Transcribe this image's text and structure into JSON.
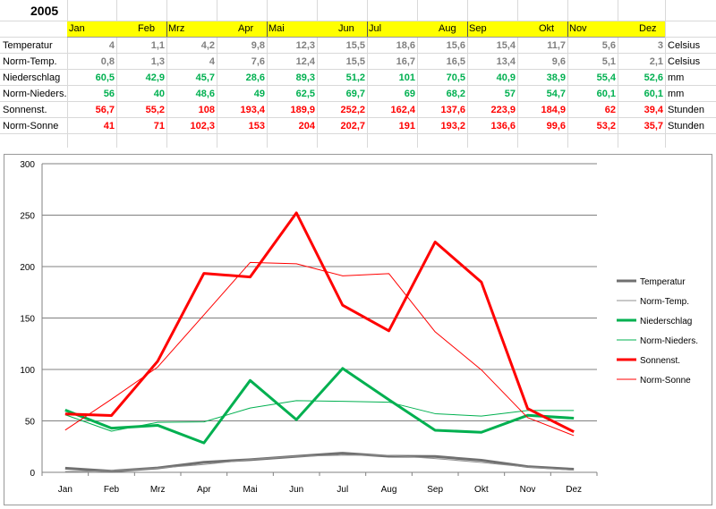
{
  "year": "2005",
  "months_header": [
    "Jan",
    "Feb",
    "Mrz",
    "Apr",
    "Mai",
    "Jun",
    "Jul",
    "Aug",
    "Sep",
    "Okt",
    "Nov",
    "Dez"
  ],
  "rows": [
    {
      "label": "Temperatur",
      "values": [
        "4",
        "1,1",
        "4,2",
        "9,8",
        "12,3",
        "15,5",
        "18,6",
        "15,6",
        "15,4",
        "11,7",
        "5,6",
        "3"
      ],
      "unit": "Celsius",
      "color": "#808080"
    },
    {
      "label": "Norm-Temp.",
      "values": [
        "0,8",
        "1,3",
        "4",
        "7,6",
        "12,4",
        "15,5",
        "16,7",
        "16,5",
        "13,4",
        "9,6",
        "5,1",
        "2,1"
      ],
      "unit": "Celsius",
      "color": "#808080"
    },
    {
      "label": "Niederschlag",
      "values": [
        "60,5",
        "42,9",
        "45,7",
        "28,6",
        "89,3",
        "51,2",
        "101",
        "70,5",
        "40,9",
        "38,9",
        "55,4",
        "52,6"
      ],
      "unit": "mm",
      "color": "#00b050"
    },
    {
      "label": "Norm-Nieders.",
      "values": [
        "56",
        "40",
        "48,6",
        "49",
        "62,5",
        "69,7",
        "69",
        "68,2",
        "57",
        "54,7",
        "60,1",
        "60,1"
      ],
      "unit": "mm",
      "color": "#00b050"
    },
    {
      "label": "Sonnenst.",
      "values": [
        "56,7",
        "55,2",
        "108",
        "193,4",
        "189,9",
        "252,2",
        "162,4",
        "137,6",
        "223,9",
        "184,9",
        "62",
        "39,4"
      ],
      "unit": "Stunden",
      "color": "#ff0000"
    },
    {
      "label": "Norm-Sonne",
      "values": [
        "41",
        "71",
        "102,3",
        "153",
        "204",
        "202,7",
        "191",
        "193,2",
        "136,6",
        "99,6",
        "53,2",
        "35,7"
      ],
      "unit": "Stunden",
      "color": "#ff0000"
    }
  ],
  "chart_data": {
    "type": "line",
    "categories": [
      "Jan",
      "Feb",
      "Mrz",
      "Apr",
      "Mai",
      "Jun",
      "Jul",
      "Aug",
      "Sep",
      "Okt",
      "Nov",
      "Dez"
    ],
    "ylim": [
      0,
      300
    ],
    "yticks": [
      0,
      50,
      100,
      150,
      200,
      250,
      300
    ],
    "grid": true,
    "legend_position": "right",
    "series": [
      {
        "name": "Temperatur",
        "values": [
          4,
          1.1,
          4.2,
          9.8,
          12.3,
          15.5,
          18.6,
          15.6,
          15.4,
          11.7,
          5.6,
          3
        ],
        "color": "#707070",
        "width": 3
      },
      {
        "name": "Norm-Temp.",
        "values": [
          0.8,
          1.3,
          4,
          7.6,
          12.4,
          15.5,
          16.7,
          16.5,
          13.4,
          9.6,
          5.1,
          2.1
        ],
        "color": "#909090",
        "width": 1
      },
      {
        "name": "Niederschlag",
        "values": [
          60.5,
          42.9,
          45.7,
          28.6,
          89.3,
          51.2,
          101,
          70.5,
          40.9,
          38.9,
          55.4,
          52.6
        ],
        "color": "#00b050",
        "width": 3
      },
      {
        "name": "Norm-Nieders.",
        "values": [
          56,
          40,
          48.6,
          49,
          62.5,
          69.7,
          69,
          68.2,
          57,
          54.7,
          60.1,
          60.1
        ],
        "color": "#00b050",
        "width": 1
      },
      {
        "name": "Sonnenst.",
        "values": [
          56.7,
          55.2,
          108,
          193.4,
          189.9,
          252.2,
          162.4,
          137.6,
          223.9,
          184.9,
          62,
          39.4
        ],
        "color": "#ff0000",
        "width": 3
      },
      {
        "name": "Norm-Sonne",
        "values": [
          41,
          71,
          102.3,
          153,
          204,
          202.7,
          191,
          193.2,
          136.6,
          99.6,
          53.2,
          35.7
        ],
        "color": "#ff0000",
        "width": 1
      }
    ]
  }
}
